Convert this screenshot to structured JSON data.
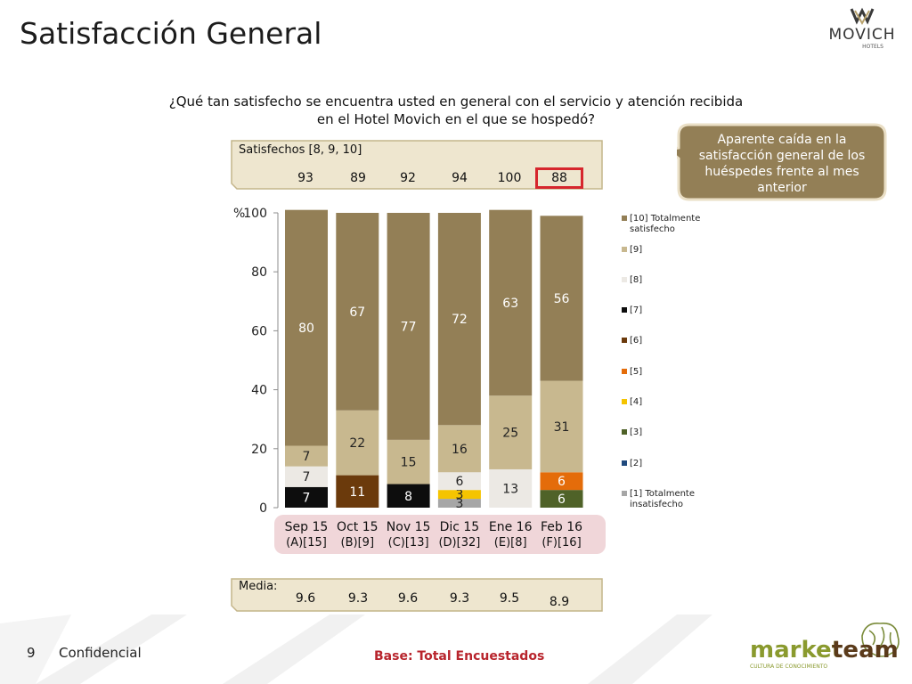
{
  "title": "Satisfacción General",
  "logo": {
    "brand": "MOVICH",
    "sub": "HOTELS"
  },
  "question": {
    "line1": "¿Qué tan satisfecho se encuentra usted en general con el servicio y atención recibida",
    "line2": "en el Hotel Movich en el que se hospedó?"
  },
  "callout": {
    "text": "Aparente caída en la satisfacción general de los huéspedes frente al mes anterior"
  },
  "satisfechos": {
    "label": "Satisfechos [8, 9, 10]",
    "values": [
      "93",
      "89",
      "92",
      "94",
      "100",
      "88"
    ],
    "highlight_index": 5
  },
  "media": {
    "label": "Media:",
    "values": [
      "9.6",
      "9.3",
      "9.6",
      "9.3",
      "9.5",
      "8.9"
    ]
  },
  "footer": {
    "slide_number": "9",
    "confidential": "Confidencial",
    "base": "Base: Total Encuestados",
    "brand_left": "market",
    "brand_right": "team",
    "brand_tagline": "CULTURA DE CONOCIMIENTO"
  },
  "chart_data": {
    "type": "bar",
    "stacked": true,
    "ylabel": "%",
    "ylim": [
      0,
      100
    ],
    "yticks": [
      0,
      20,
      40,
      60,
      80,
      100
    ],
    "grid": false,
    "legend_position": "right",
    "categories": [
      {
        "line1": "Sep 15",
        "line2": "(A)[15]"
      },
      {
        "line1": "Oct 15",
        "line2": "(B)[9]"
      },
      {
        "line1": "Nov 15",
        "line2": "(C)[13]"
      },
      {
        "line1": "Dic 15",
        "line2": "(D)[32]"
      },
      {
        "line1": "Ene 16",
        "line2": "(E)[8]"
      },
      {
        "line1": "Feb 16",
        "line2": "(F)[16]"
      }
    ],
    "series": [
      {
        "name": "[1] Totalmente insatisfecho",
        "color": "#a6a6a6",
        "values": [
          0,
          0,
          0,
          3,
          0,
          0
        ]
      },
      {
        "name": "[2]",
        "color": "#1f497d",
        "values": [
          0,
          0,
          0,
          0,
          0,
          0
        ]
      },
      {
        "name": "[3]",
        "color": "#4f6228",
        "values": [
          0,
          0,
          0,
          0,
          0,
          6
        ]
      },
      {
        "name": "[4]",
        "color": "#f5c400",
        "values": [
          0,
          0,
          0,
          3,
          0,
          0
        ]
      },
      {
        "name": "[5]",
        "color": "#e46c0a",
        "values": [
          0,
          0,
          0,
          0,
          0,
          6
        ]
      },
      {
        "name": "[6]",
        "color": "#6b3a0c",
        "values": [
          0,
          11,
          0,
          0,
          0,
          0
        ]
      },
      {
        "name": "[7]",
        "color": "#0d0d0d",
        "values": [
          7,
          0,
          8,
          0,
          0,
          0
        ]
      },
      {
        "name": "[8]",
        "color": "#ece9e4",
        "values": [
          7,
          0,
          0,
          6,
          13,
          0
        ]
      },
      {
        "name": "[9]",
        "color": "#c8b88f",
        "values": [
          7,
          22,
          15,
          16,
          25,
          31
        ]
      },
      {
        "name": "[10] Totalmente satisfecho",
        "color": "#937f56",
        "values": [
          80,
          67,
          77,
          72,
          63,
          56
        ]
      }
    ]
  }
}
